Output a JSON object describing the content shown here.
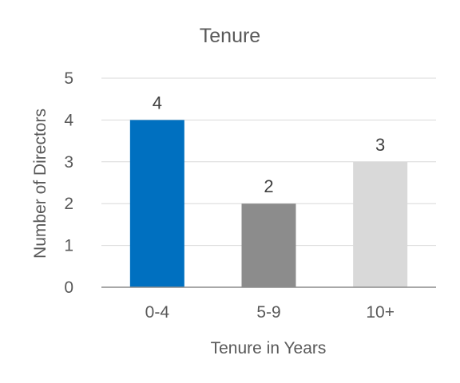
{
  "chart_data": {
    "type": "bar",
    "title": "Tenure",
    "xlabel": "Tenure in Years",
    "ylabel": "Number of Directors",
    "categories": [
      "0-4",
      "5-9",
      "10+"
    ],
    "values": [
      4,
      2,
      3
    ],
    "ylim": [
      0,
      5
    ],
    "yticks": [
      0,
      1,
      2,
      3,
      4,
      5
    ],
    "grid": true,
    "legend": "none",
    "colors": [
      "#0070c0",
      "#8c8c8c",
      "#d9d9d9"
    ]
  }
}
